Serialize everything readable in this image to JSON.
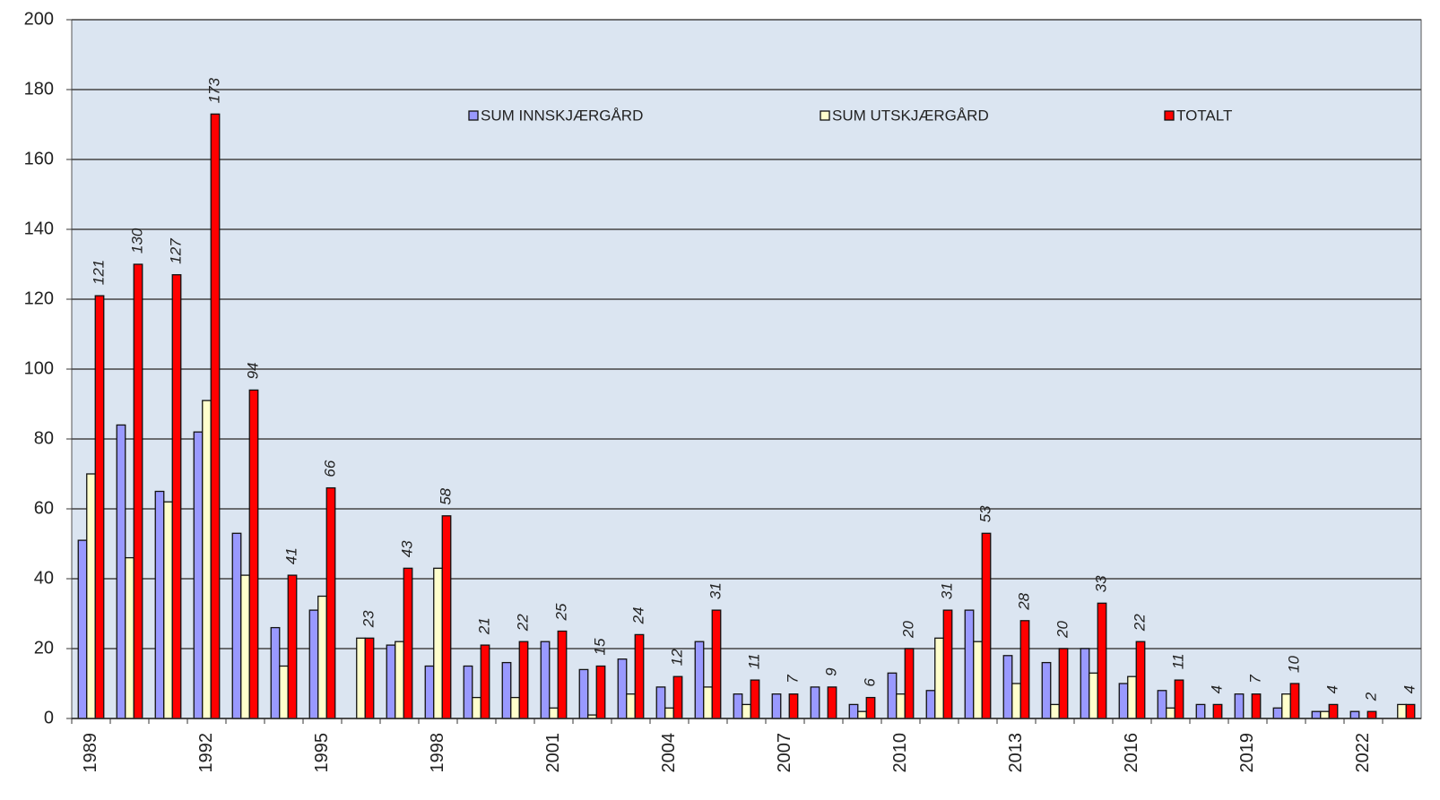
{
  "chart_data": {
    "type": "bar",
    "categories": [
      "1989",
      null,
      null,
      "1992",
      null,
      null,
      "1995",
      null,
      null,
      "1998",
      null,
      null,
      "2001",
      null,
      null,
      "2004",
      null,
      null,
      "2007",
      null,
      null,
      "2010",
      null,
      null,
      "2013",
      null,
      null,
      "2016",
      null,
      null,
      "2019",
      null,
      null,
      "2022",
      null
    ],
    "series": [
      {
        "name": "SUM INNSKJÆRGÅRD",
        "color": "#9999ff",
        "values": [
          51,
          84,
          65,
          82,
          53,
          26,
          31,
          0,
          21,
          15,
          15,
          16,
          22,
          14,
          17,
          9,
          22,
          7,
          7,
          9,
          4,
          13,
          8,
          31,
          18,
          16,
          20,
          10,
          8,
          4,
          7,
          3,
          2,
          2,
          0
        ]
      },
      {
        "name": "SUM UTSKJÆRGÅRD",
        "color": "#ffffcc",
        "values": [
          70,
          46,
          62,
          91,
          41,
          15,
          35,
          23,
          22,
          43,
          6,
          6,
          3,
          1,
          7,
          3,
          9,
          4,
          0,
          0,
          2,
          7,
          23,
          22,
          10,
          4,
          13,
          12,
          3,
          0,
          0,
          7,
          2,
          0,
          4
        ]
      },
      {
        "name": "TOTALT",
        "color": "#ff0000",
        "values": [
          121,
          130,
          127,
          173,
          94,
          41,
          66,
          23,
          43,
          58,
          21,
          22,
          25,
          15,
          24,
          12,
          31,
          11,
          7,
          9,
          6,
          20,
          31,
          53,
          28,
          20,
          33,
          22,
          11,
          4,
          7,
          10,
          4,
          2,
          4
        ],
        "data_labels": true
      }
    ],
    "ylim": [
      0,
      200
    ],
    "yticks": [
      0,
      20,
      40,
      60,
      80,
      100,
      120,
      140,
      160,
      180,
      200
    ],
    "grid": true,
    "legend": "top",
    "background": "#dbe5f1"
  }
}
